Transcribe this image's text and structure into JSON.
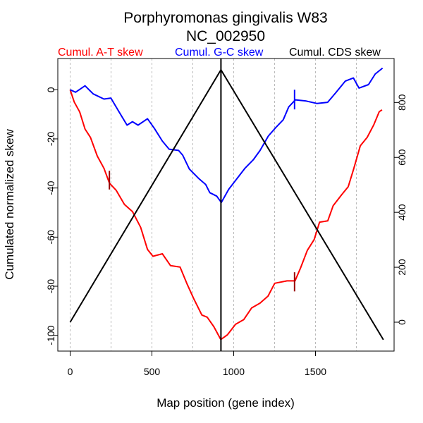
{
  "chart_data": {
    "type": "line",
    "title": "Porphyromonas gingivalis W83",
    "subtitle": "NC_002950",
    "xlabel": "Map position (gene index)",
    "ylabel": "Cumulated normalized skew",
    "xlim": [
      -75,
      1980
    ],
    "ylim": [
      -106.5,
      12.6
    ],
    "y2lim": [
      -70,
      1000
    ],
    "x_ticks": [
      0,
      500,
      1000,
      1500
    ],
    "y_ticks": [
      0,
      -20,
      -40,
      -60,
      -80,
      -100
    ],
    "y2_ticks": [
      0,
      200,
      400,
      600,
      800
    ],
    "grid_x": [
      0,
      250,
      500,
      750,
      1000,
      1250,
      1500,
      1750
    ],
    "vertical_marker_x": 922,
    "legend": [
      {
        "label": "Cumul. A-T skew",
        "color": "#ff0000"
      },
      {
        "label": "Cumul. G-C skew",
        "color": "#0000ff"
      },
      {
        "label": "Cumul. CDS skew",
        "color": "#000000"
      }
    ],
    "series": [
      {
        "name": "Cumul. A-T skew",
        "color": "#ff0000",
        "axis": "left",
        "points": [
          [
            0,
            0
          ],
          [
            25,
            -5
          ],
          [
            58,
            -9
          ],
          [
            91,
            -16
          ],
          [
            124,
            -19.4
          ],
          [
            166,
            -27
          ],
          [
            207,
            -32
          ],
          [
            240,
            -38
          ],
          [
            282,
            -41
          ],
          [
            332,
            -46.7
          ],
          [
            381,
            -49.6
          ],
          [
            431,
            -56
          ],
          [
            473,
            -65
          ],
          [
            506,
            -67.8
          ],
          [
            564,
            -66.8
          ],
          [
            614,
            -71.6
          ],
          [
            672,
            -72.2
          ],
          [
            713,
            -78.8
          ],
          [
            755,
            -85
          ],
          [
            805,
            -91.7
          ],
          [
            838,
            -92.6
          ],
          [
            879,
            -96.5
          ],
          [
            921,
            -101.7
          ],
          [
            961,
            -99.8
          ],
          [
            1011,
            -95.5
          ],
          [
            1061,
            -93.6
          ],
          [
            1110,
            -88.8
          ],
          [
            1160,
            -86.9
          ],
          [
            1210,
            -84
          ],
          [
            1251,
            -78.8
          ],
          [
            1326,
            -77.8
          ],
          [
            1375,
            -77.8
          ],
          [
            1409,
            -72.5
          ],
          [
            1450,
            -65.4
          ],
          [
            1492,
            -61
          ],
          [
            1525,
            -53.9
          ],
          [
            1575,
            -53.4
          ],
          [
            1608,
            -47.2
          ],
          [
            1658,
            -42.9
          ],
          [
            1700,
            -39.5
          ],
          [
            1733,
            -32.3
          ],
          [
            1774,
            -22.8
          ],
          [
            1816,
            -19.4
          ],
          [
            1857,
            -14.2
          ],
          [
            1890,
            -8.9
          ],
          [
            1907,
            -8.2
          ]
        ],
        "marks": [
          {
            "x": 240,
            "y": [
              -33,
              -40.6
            ]
          },
          {
            "x": 1372,
            "y": [
              -74.3,
              -82.1
            ]
          }
        ]
      },
      {
        "name": "Cumul. G-C skew",
        "color": "#0000ff",
        "axis": "left",
        "points": [
          [
            0,
            0
          ],
          [
            33,
            -1
          ],
          [
            91,
            1.6
          ],
          [
            141,
            -1.7
          ],
          [
            207,
            -3.8
          ],
          [
            249,
            -3.4
          ],
          [
            298,
            -8.9
          ],
          [
            348,
            -14.4
          ],
          [
            381,
            -13
          ],
          [
            415,
            -14.4
          ],
          [
            473,
            -11.8
          ],
          [
            514,
            -15.6
          ],
          [
            564,
            -20.9
          ],
          [
            605,
            -24.2
          ],
          [
            663,
            -24.7
          ],
          [
            688,
            -26.6
          ],
          [
            729,
            -32.3
          ],
          [
            787,
            -36.2
          ],
          [
            829,
            -38.6
          ],
          [
            854,
            -41.9
          ],
          [
            896,
            -43.3
          ],
          [
            924,
            -45.9
          ],
          [
            970,
            -40.5
          ],
          [
            1020,
            -36.2
          ],
          [
            1070,
            -31.9
          ],
          [
            1120,
            -28.5
          ],
          [
            1161,
            -24.7
          ],
          [
            1211,
            -18.9
          ],
          [
            1261,
            -15.1
          ],
          [
            1303,
            -12.2
          ],
          [
            1336,
            -7
          ],
          [
            1377,
            -4.1
          ],
          [
            1443,
            -4.6
          ],
          [
            1510,
            -5.6
          ],
          [
            1574,
            -5.1
          ],
          [
            1624,
            -1.2
          ],
          [
            1682,
            3.5
          ],
          [
            1732,
            4.8
          ],
          [
            1766,
            0.7
          ],
          [
            1824,
            2.1
          ],
          [
            1865,
            6.4
          ],
          [
            1910,
            8.8
          ]
        ],
        "marks": [
          {
            "x": 1372,
            "y": [
              0,
              -8
            ]
          }
        ]
      },
      {
        "name": "Cumul. CDS skew",
        "color": "#000000",
        "axis": "right",
        "points": [
          [
            0,
            0
          ],
          [
            922,
            919
          ],
          [
            1915,
            -64
          ]
        ]
      }
    ]
  }
}
